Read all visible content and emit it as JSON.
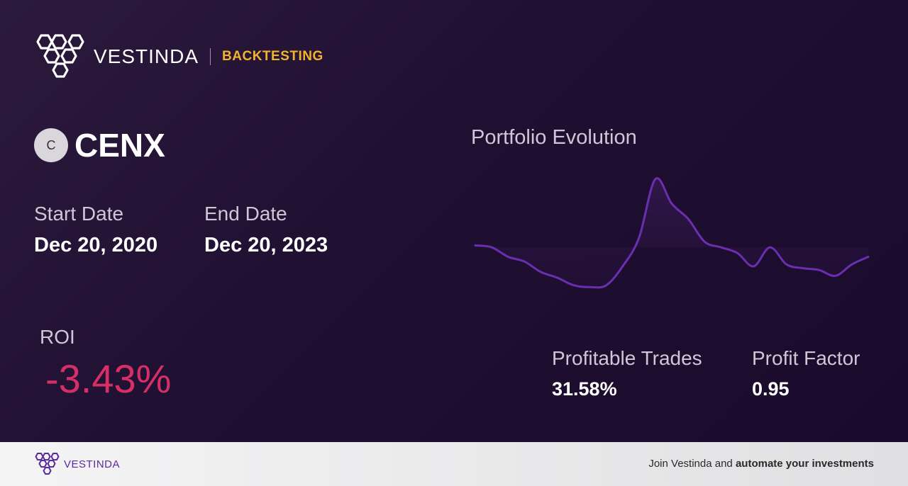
{
  "header": {
    "brand": "VESTINDA",
    "tag": "BACKTESTING"
  },
  "ticker": {
    "badge": "C",
    "symbol": "CENX"
  },
  "dates": {
    "start_label": "Start Date",
    "start_value": "Dec 20, 2020",
    "end_label": "End Date",
    "end_value": "Dec 20, 2023"
  },
  "roi": {
    "label": "ROI",
    "value": "-3.43%"
  },
  "stats": {
    "profitable_trades_label": "Profitable Trades",
    "profitable_trades_value": "31.58%",
    "profit_factor_label": "Profit Factor",
    "profit_factor_value": "0.95"
  },
  "chart": {
    "title": "Portfolio Evolution"
  },
  "chart_data": {
    "type": "line",
    "title": "Portfolio Evolution",
    "xlabel": "",
    "ylabel": "",
    "grid": false,
    "baseline": 0,
    "series": [
      {
        "values": [
          2,
          0,
          -10,
          -15,
          -26,
          -32,
          -40,
          -42,
          -40,
          -20,
          10,
          72,
          46,
          30,
          6,
          0,
          -6,
          -20,
          0,
          -18,
          -22,
          -24,
          -30,
          -18,
          -10
        ]
      }
    ],
    "ylim": [
      -44,
      80
    ]
  },
  "colors": {
    "accent": "#f2b32a",
    "roi_negative": "#d62f68",
    "line": "#6a2fb0",
    "brand_purple": "#5b2a9c"
  },
  "footer": {
    "brand": "VESTINDA",
    "text_plain": "Join Vestinda and ",
    "text_bold": "automate your investments"
  }
}
